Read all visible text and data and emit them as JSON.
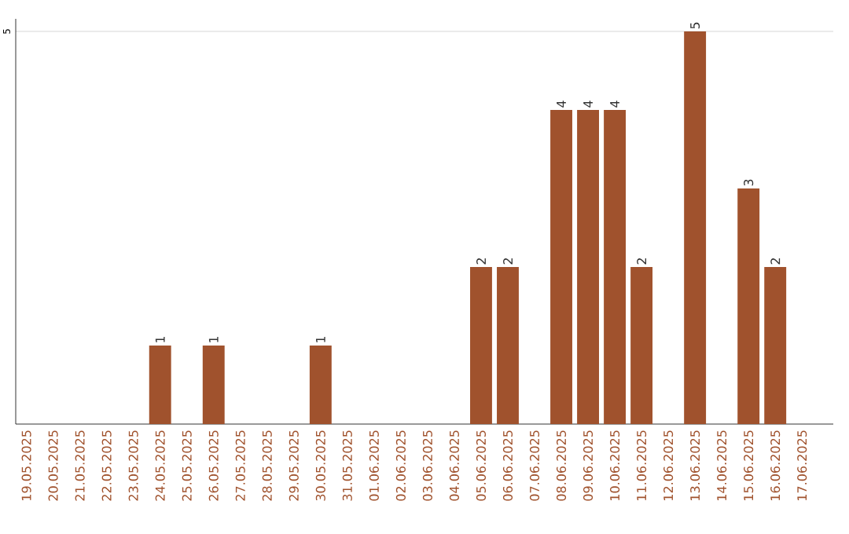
{
  "chart_data": {
    "type": "bar",
    "categories": [
      "19.05.2025",
      "20.05.2025",
      "21.05.2025",
      "22.05.2025",
      "23.05.2025",
      "24.05.2025",
      "25.05.2025",
      "26.05.2025",
      "27.05.2025",
      "28.05.2025",
      "29.05.2025",
      "30.05.2025",
      "31.05.2025",
      "01.06.2025",
      "02.06.2025",
      "03.06.2025",
      "04.06.2025",
      "05.06.2025",
      "06.06.2025",
      "07.06.2025",
      "08.06.2025",
      "09.06.2025",
      "10.06.2025",
      "11.06.2025",
      "12.06.2025",
      "13.06.2025",
      "14.06.2025",
      "15.06.2025",
      "16.06.2025",
      "17.06.2025"
    ],
    "values": [
      0,
      0,
      0,
      0,
      0,
      1,
      0,
      1,
      0,
      0,
      0,
      1,
      0,
      0,
      0,
      0,
      0,
      2,
      2,
      0,
      4,
      4,
      4,
      2,
      0,
      5,
      0,
      3,
      2,
      0
    ],
    "value_labels": [
      null,
      null,
      null,
      null,
      null,
      "1",
      null,
      "1",
      null,
      null,
      null,
      "1",
      null,
      null,
      null,
      null,
      null,
      "2",
      "2",
      null,
      "4",
      "4",
      "4",
      "2",
      null,
      "5",
      null,
      "3",
      "2",
      null
    ],
    "color": "#a0522d",
    "ylim": [
      0,
      5.16
    ],
    "yticks": [
      5
    ],
    "grid": "y"
  }
}
